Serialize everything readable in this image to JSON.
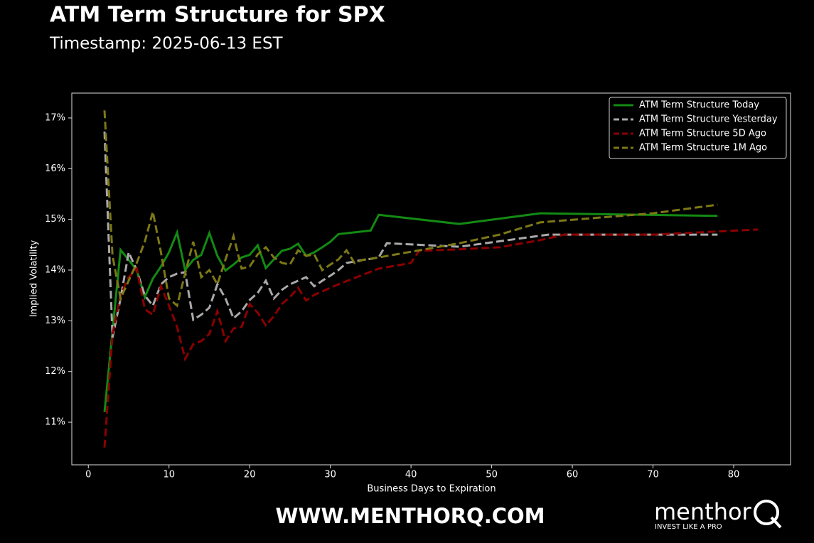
{
  "chart_data": {
    "type": "line",
    "title": "ATM Term Structure for SPX",
    "subtitle": "Timestamp: 2025-06-13 EST",
    "xlabel": "Business Days to Expiration",
    "ylabel": "Implied Volatility",
    "xlim": [
      -2.05,
      87.05
    ],
    "ylim": [
      10.16,
      17.49
    ],
    "xticks": [
      0,
      10,
      20,
      30,
      40,
      50,
      60,
      70,
      80
    ],
    "yticks": [
      {
        "value": 11,
        "label": "11%"
      },
      {
        "value": 12,
        "label": "12%"
      },
      {
        "value": 13,
        "label": "13%"
      },
      {
        "value": 14,
        "label": "14%"
      },
      {
        "value": 15,
        "label": "15%"
      },
      {
        "value": 16,
        "label": "16%"
      },
      {
        "value": 17,
        "label": "17%"
      }
    ],
    "grid": false,
    "legend": "upper-right",
    "series": [
      {
        "name": "ATM Term Structure Today",
        "color": "#138a13",
        "linestyle": "solid",
        "x": [
          2,
          4,
          5,
          6,
          7,
          8,
          9,
          10,
          11,
          12,
          13,
          14,
          15,
          16,
          17,
          18,
          19,
          20,
          21,
          22,
          23,
          24,
          25,
          26,
          27,
          28,
          29,
          30,
          31,
          35,
          36,
          46,
          56,
          78
        ],
        "values": [
          11.2,
          14.4,
          14.2,
          14.0,
          13.47,
          13.83,
          14.07,
          14.35,
          14.74,
          14.0,
          14.2,
          14.3,
          14.73,
          14.28,
          13.99,
          14.11,
          14.25,
          14.3,
          14.49,
          14.04,
          14.21,
          14.38,
          14.42,
          14.52,
          14.28,
          14.35,
          14.45,
          14.56,
          14.71,
          14.78,
          15.09,
          14.91,
          15.12,
          15.07
        ]
      },
      {
        "name": "ATM Term Structure Yesterday",
        "color": "#a9a9a9",
        "linestyle": "dashed",
        "x": [
          2,
          3,
          4,
          5,
          6,
          7,
          8,
          9,
          10,
          11,
          12,
          13,
          14,
          15,
          16,
          17,
          18,
          19,
          20,
          21,
          22,
          23,
          24,
          25,
          26,
          27,
          28,
          29,
          30,
          31,
          32,
          33,
          34,
          35,
          36,
          37,
          46,
          57,
          78
        ],
        "values": [
          16.73,
          12.67,
          13.44,
          14.35,
          14.0,
          13.5,
          13.3,
          13.72,
          13.86,
          13.93,
          13.96,
          13.02,
          13.12,
          13.26,
          13.72,
          13.44,
          13.05,
          13.19,
          13.41,
          13.55,
          13.79,
          13.44,
          13.61,
          13.72,
          13.79,
          13.86,
          13.68,
          13.79,
          13.89,
          14.0,
          14.14,
          14.17,
          14.2,
          14.22,
          14.25,
          14.53,
          14.46,
          14.7,
          14.7
        ]
      },
      {
        "name": "ATM Term Structure 5D Ago",
        "color": "#8b0000",
        "linestyle": "dashed",
        "x": [
          2,
          3,
          4,
          5,
          6,
          7,
          8,
          9,
          10,
          11,
          12,
          13,
          14,
          15,
          16,
          17,
          18,
          19,
          20,
          21,
          22,
          23,
          24,
          25,
          26,
          27,
          28,
          29,
          30,
          31,
          36,
          40,
          41,
          46,
          51,
          56,
          59,
          70,
          83
        ],
        "values": [
          10.5,
          12.74,
          13.51,
          13.86,
          14.03,
          13.23,
          13.12,
          13.68,
          13.3,
          12.88,
          12.25,
          12.54,
          12.6,
          12.74,
          13.19,
          12.6,
          12.85,
          12.88,
          13.33,
          13.16,
          12.91,
          13.09,
          13.33,
          13.47,
          13.65,
          13.4,
          13.51,
          13.58,
          13.65,
          13.72,
          14.03,
          14.14,
          14.38,
          14.41,
          14.45,
          14.59,
          14.7,
          14.7,
          14.8
        ]
      },
      {
        "name": "ATM Term Structure 1M Ago",
        "color": "#7d7815",
        "linestyle": "dashed",
        "x": [
          2,
          3,
          4,
          5,
          6,
          7,
          8,
          9,
          10,
          11,
          12,
          13,
          14,
          15,
          16,
          17,
          18,
          19,
          20,
          21,
          22,
          23,
          24,
          25,
          26,
          27,
          28,
          29,
          30,
          31,
          32,
          33,
          34,
          36,
          46,
          51,
          56,
          70,
          78
        ],
        "values": [
          17.15,
          14.28,
          13.44,
          13.79,
          14.14,
          14.56,
          15.15,
          14.35,
          13.44,
          13.3,
          13.93,
          14.56,
          13.86,
          14.0,
          13.72,
          14.21,
          14.67,
          14.03,
          14.07,
          14.31,
          14.45,
          14.25,
          14.14,
          14.11,
          14.39,
          14.28,
          14.31,
          14.0,
          14.11,
          14.21,
          14.39,
          14.14,
          14.2,
          14.25,
          14.53,
          14.7,
          14.94,
          15.12,
          15.29
        ]
      }
    ]
  },
  "footer": {
    "url": "WWW.MENTHORQ.COM",
    "brand": "menthor",
    "brand_mark": "Q",
    "tagline": "INVEST LIKE A PRO"
  }
}
